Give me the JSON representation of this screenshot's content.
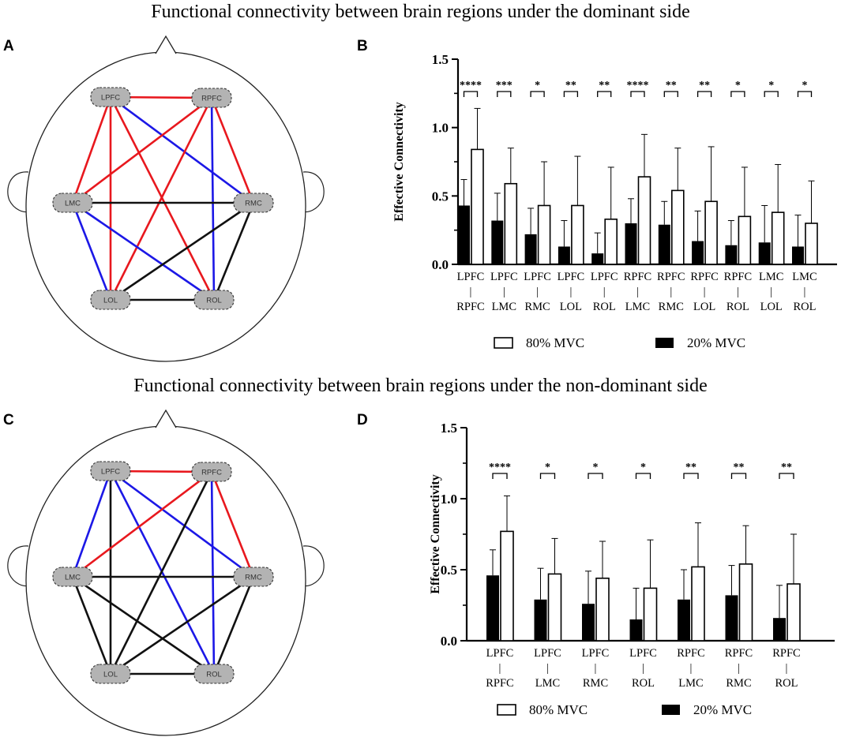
{
  "titles": {
    "top": "Functional connectivity between brain regions under the dominant side",
    "bottom": "Functional connectivity between brain regions under the non-dominant side"
  },
  "panels": {
    "a": "A",
    "b": "B",
    "c": "C",
    "d": "D"
  },
  "colors": {
    "red": "#e8181e",
    "blue": "#1c18e6",
    "black": "#111111",
    "node_fill": "#b3b3b3"
  },
  "networks": [
    {
      "id": "A",
      "nodes": [
        "LPFC",
        "RPFC",
        "LMC",
        "RMC",
        "LOL",
        "ROL"
      ],
      "edges": [
        [
          "LPFC",
          "RPFC",
          "red"
        ],
        [
          "LPFC",
          "LMC",
          "red"
        ],
        [
          "LPFC",
          "RMC",
          "blue"
        ],
        [
          "LPFC",
          "LOL",
          "red"
        ],
        [
          "LPFC",
          "ROL",
          "red"
        ],
        [
          "RPFC",
          "LMC",
          "red"
        ],
        [
          "RPFC",
          "RMC",
          "red"
        ],
        [
          "RPFC",
          "LOL",
          "red"
        ],
        [
          "RPFC",
          "ROL",
          "blue"
        ],
        [
          "LMC",
          "RMC",
          "black"
        ],
        [
          "LMC",
          "LOL",
          "blue"
        ],
        [
          "LMC",
          "ROL",
          "blue"
        ],
        [
          "RMC",
          "LOL",
          "black"
        ],
        [
          "RMC",
          "ROL",
          "black"
        ],
        [
          "LOL",
          "ROL",
          "black"
        ]
      ]
    },
    {
      "id": "C",
      "nodes": [
        "LPFC",
        "RPFC",
        "LMC",
        "RMC",
        "LOL",
        "ROL"
      ],
      "edges": [
        [
          "LPFC",
          "RPFC",
          "red"
        ],
        [
          "LPFC",
          "LMC",
          "blue"
        ],
        [
          "LPFC",
          "RMC",
          "blue"
        ],
        [
          "LPFC",
          "LOL",
          "black"
        ],
        [
          "LPFC",
          "ROL",
          "blue"
        ],
        [
          "RPFC",
          "LMC",
          "red"
        ],
        [
          "RPFC",
          "RMC",
          "red"
        ],
        [
          "RPFC",
          "LOL",
          "black"
        ],
        [
          "RPFC",
          "ROL",
          "blue"
        ],
        [
          "LMC",
          "RMC",
          "black"
        ],
        [
          "LMC",
          "LOL",
          "black"
        ],
        [
          "LMC",
          "ROL",
          "black"
        ],
        [
          "RMC",
          "LOL",
          "black"
        ],
        [
          "RMC",
          "ROL",
          "black"
        ],
        [
          "LOL",
          "ROL",
          "black"
        ]
      ]
    }
  ],
  "chart_data": [
    {
      "id": "B",
      "type": "bar",
      "ylabel": "Effective Connectivity",
      "ylim": [
        0,
        1.5
      ],
      "yticks": [
        "0.0",
        "0.5",
        "1.0",
        "1.5"
      ],
      "categories": [
        [
          "LPFC",
          "|",
          "RPFC"
        ],
        [
          "LPFC",
          "|",
          "LMC"
        ],
        [
          "LPFC",
          "|",
          "RMC"
        ],
        [
          "LPFC",
          "|",
          "LOL"
        ],
        [
          "LPFC",
          "|",
          "ROL"
        ],
        [
          "RPFC",
          "|",
          "LMC"
        ],
        [
          "RPFC",
          "|",
          "RMC"
        ],
        [
          "RPFC",
          "|",
          "LOL"
        ],
        [
          "RPFC",
          "|",
          "ROL"
        ],
        [
          "LMC",
          "|",
          "LOL"
        ],
        [
          "LMC",
          "|",
          "ROL"
        ]
      ],
      "series": [
        {
          "name": "20% MVC",
          "values": [
            0.43,
            0.32,
            0.22,
            0.13,
            0.08,
            0.3,
            0.29,
            0.17,
            0.14,
            0.16,
            0.13
          ],
          "errors": [
            0.19,
            0.2,
            0.19,
            0.19,
            0.15,
            0.18,
            0.17,
            0.22,
            0.18,
            0.27,
            0.23
          ]
        },
        {
          "name": "80% MVC",
          "values": [
            0.84,
            0.59,
            0.43,
            0.43,
            0.33,
            0.64,
            0.54,
            0.46,
            0.35,
            0.38,
            0.3
          ],
          "errors": [
            0.3,
            0.26,
            0.32,
            0.36,
            0.38,
            0.31,
            0.31,
            0.4,
            0.36,
            0.35,
            0.31
          ]
        }
      ],
      "significance": [
        "****",
        "***",
        "*",
        "**",
        "**",
        "****",
        "**",
        "**",
        "*",
        "*",
        "*"
      ],
      "legend": [
        "80% MVC",
        "20% MVC"
      ]
    },
    {
      "id": "D",
      "type": "bar",
      "ylabel": "Effective Connectivity",
      "ylim": [
        0,
        1.5
      ],
      "yticks": [
        "0.0",
        "0.5",
        "1.0",
        "1.5"
      ],
      "categories": [
        [
          "LPFC",
          "|",
          "RPFC"
        ],
        [
          "LPFC",
          "|",
          "LMC"
        ],
        [
          "LPFC",
          "|",
          "RMC"
        ],
        [
          "LPFC",
          "|",
          "ROL"
        ],
        [
          "RPFC",
          "|",
          "LMC"
        ],
        [
          "RPFC",
          "|",
          "RMC"
        ],
        [
          "RPFC",
          "|",
          "ROL"
        ]
      ],
      "series": [
        {
          "name": "20% MVC",
          "values": [
            0.46,
            0.29,
            0.26,
            0.15,
            0.29,
            0.32,
            0.16
          ],
          "errors": [
            0.18,
            0.22,
            0.23,
            0.22,
            0.21,
            0.21,
            0.23
          ]
        },
        {
          "name": "80% MVC",
          "values": [
            0.77,
            0.47,
            0.44,
            0.37,
            0.52,
            0.54,
            0.4
          ],
          "errors": [
            0.25,
            0.25,
            0.26,
            0.34,
            0.31,
            0.27,
            0.35
          ]
        }
      ],
      "significance": [
        "****",
        "*",
        "*",
        "*",
        "**",
        "**",
        "**"
      ],
      "legend": [
        "80% MVC",
        "20% MVC"
      ]
    }
  ]
}
